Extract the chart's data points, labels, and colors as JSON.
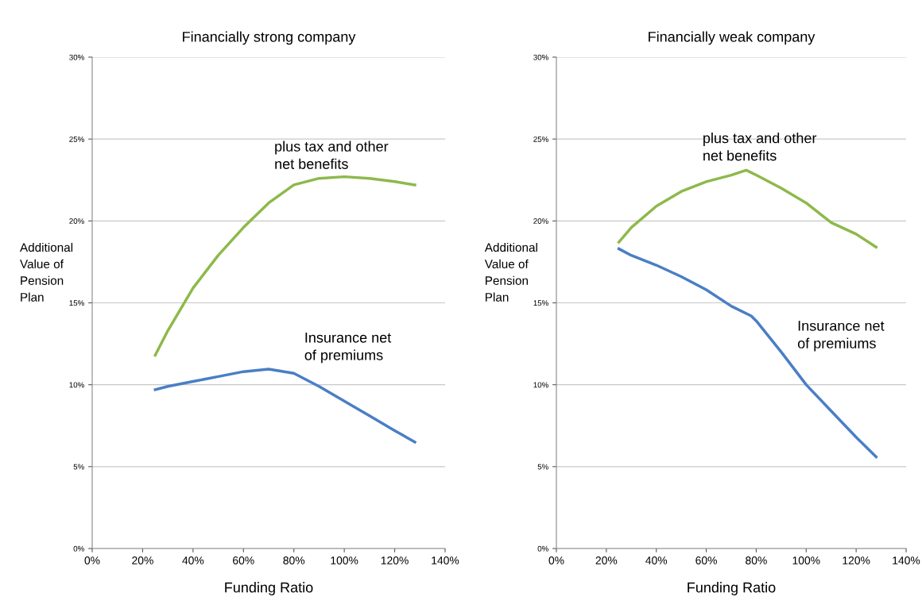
{
  "chart_data": [
    {
      "type": "line",
      "title": "Financially strong company",
      "xlabel": "Funding Ratio",
      "ylabel": "Additional\nValue of\nPension\nPlan",
      "xlim": [
        0,
        140
      ],
      "ylim": [
        0,
        30
      ],
      "grid": "y",
      "legend": false,
      "xticks": [
        {
          "value": 0,
          "label": "0%"
        },
        {
          "value": 20,
          "label": "20%"
        },
        {
          "value": 40,
          "label": "40%"
        },
        {
          "value": 60,
          "label": "60%"
        },
        {
          "value": 80,
          "label": "80%"
        },
        {
          "value": 100,
          "label": "100%"
        },
        {
          "value": 120,
          "label": "120%"
        },
        {
          "value": 140,
          "label": "140%"
        }
      ],
      "yticks": [
        {
          "value": 0,
          "label": "0%"
        },
        {
          "value": 5,
          "label": "5%"
        },
        {
          "value": 10,
          "label": "10%"
        },
        {
          "value": 15,
          "label": "15%"
        },
        {
          "value": 20,
          "label": "20%"
        },
        {
          "value": 25,
          "label": "25%"
        },
        {
          "value": 30,
          "label": "30%"
        }
      ],
      "series": [
        {
          "name": "plus tax and other\nnet benefits",
          "color": "#8db94a",
          "x": [
            25,
            30,
            40,
            50,
            60,
            70,
            80,
            90,
            100,
            110,
            120,
            128
          ],
          "values": [
            11.8,
            13.3,
            15.9,
            17.9,
            19.6,
            21.1,
            22.2,
            22.6,
            22.7,
            22.6,
            22.4,
            22.2
          ]
        },
        {
          "name": "Insurance net\nof premiums",
          "color": "#4a7ec6",
          "x": [
            25,
            30,
            40,
            50,
            60,
            70,
            80,
            90,
            100,
            110,
            120,
            128
          ],
          "values": [
            9.7,
            9.9,
            10.2,
            10.5,
            10.8,
            10.95,
            10.7,
            9.9,
            9.0,
            8.1,
            7.2,
            6.5
          ]
        }
      ]
    },
    {
      "type": "line",
      "title": "Financially weak company",
      "xlabel": "Funding Ratio",
      "ylabel": "Additional\nValue of\nPension\nPlan",
      "xlim": [
        0,
        140
      ],
      "ylim": [
        0,
        30
      ],
      "grid": "y",
      "legend": false,
      "xticks": [
        {
          "value": 0,
          "label": "0%"
        },
        {
          "value": 20,
          "label": "20%"
        },
        {
          "value": 40,
          "label": "40%"
        },
        {
          "value": 60,
          "label": "60%"
        },
        {
          "value": 80,
          "label": "80%"
        },
        {
          "value": 100,
          "label": "100%"
        },
        {
          "value": 120,
          "label": "120%"
        },
        {
          "value": 140,
          "label": "140%"
        }
      ],
      "yticks": [
        {
          "value": 0,
          "label": "0%"
        },
        {
          "value": 5,
          "label": "5%"
        },
        {
          "value": 10,
          "label": "10%"
        },
        {
          "value": 15,
          "label": "15%"
        },
        {
          "value": 20,
          "label": "20%"
        },
        {
          "value": 25,
          "label": "25%"
        },
        {
          "value": 30,
          "label": "30%"
        }
      ],
      "series": [
        {
          "name": "plus tax and other\nnet benefits",
          "color": "#8db94a",
          "x": [
            25,
            30,
            40,
            50,
            60,
            70,
            76,
            80,
            90,
            100,
            110,
            120,
            128
          ],
          "values": [
            18.7,
            19.6,
            20.9,
            21.8,
            22.4,
            22.8,
            23.1,
            22.8,
            22.0,
            21.1,
            19.9,
            19.2,
            18.4
          ]
        },
        {
          "name": "Insurance net\nof premiums",
          "color": "#4a7ec6",
          "x": [
            25,
            30,
            40,
            50,
            60,
            70,
            78,
            80,
            90,
            100,
            110,
            120,
            128
          ],
          "values": [
            18.3,
            17.9,
            17.3,
            16.6,
            15.8,
            14.8,
            14.2,
            13.9,
            12.0,
            10.0,
            8.4,
            6.8,
            5.6
          ]
        }
      ]
    }
  ]
}
